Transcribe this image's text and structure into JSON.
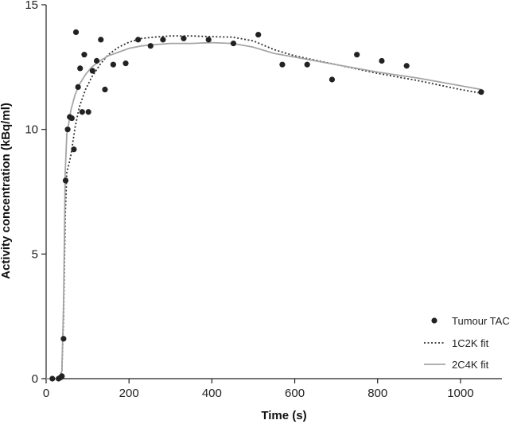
{
  "chart_data": {
    "type": "scatter",
    "title": "",
    "xlabel": "Time (s)",
    "ylabel": "Activity concentration (kBq/ml)",
    "xlim": [
      0,
      1100
    ],
    "ylim": [
      0,
      15
    ],
    "xticks": [
      0,
      200,
      400,
      600,
      800,
      1000
    ],
    "yticks": [
      0,
      5,
      10,
      15
    ],
    "grid": false,
    "legend_position": "bottom-right",
    "series": [
      {
        "name": "Tumour TAC",
        "kind": "scatter",
        "color": "#222222",
        "x": [
          15,
          30,
          35,
          38,
          42,
          47,
          52,
          57,
          62,
          67,
          72,
          77,
          82,
          87,
          92,
          102,
          112,
          122,
          132,
          142,
          162,
          192,
          222,
          252,
          282,
          332,
          392,
          452,
          512,
          570,
          630,
          690,
          750,
          810,
          870,
          1050
        ],
        "y": [
          0.0,
          0.0,
          0.05,
          0.1,
          1.6,
          7.95,
          10.0,
          10.5,
          10.45,
          9.2,
          13.9,
          11.7,
          12.45,
          10.7,
          13.0,
          10.7,
          12.35,
          12.75,
          13.6,
          11.6,
          12.6,
          12.65,
          13.6,
          13.35,
          13.6,
          13.65,
          13.6,
          13.45,
          13.8,
          12.6,
          12.6,
          12.0,
          13.0,
          12.75,
          12.55,
          11.5
        ]
      },
      {
        "name": "1C2K fit",
        "kind": "line",
        "dash": "dotted",
        "color": "#333333",
        "x": [
          0,
          30,
          38,
          42,
          46,
          50,
          55,
          60,
          70,
          80,
          95,
          110,
          130,
          150,
          175,
          200,
          230,
          260,
          300,
          350,
          400,
          450,
          500,
          550,
          600,
          700,
          800,
          900,
          1000,
          1050
        ],
        "y": [
          0.0,
          0.0,
          0.3,
          2.5,
          6.5,
          8.3,
          8.6,
          9.0,
          10.1,
          10.9,
          11.6,
          12.1,
          12.6,
          13.0,
          13.3,
          13.5,
          13.65,
          13.7,
          13.75,
          13.75,
          13.72,
          13.7,
          13.55,
          13.2,
          12.95,
          12.6,
          12.25,
          11.95,
          11.6,
          11.45
        ]
      },
      {
        "name": "2C4K fit",
        "kind": "line",
        "dash": "solid",
        "color": "#a6a6a6",
        "x": [
          0,
          30,
          38,
          42,
          46,
          50,
          55,
          60,
          70,
          80,
          95,
          110,
          130,
          150,
          175,
          200,
          230,
          260,
          300,
          350,
          400,
          450,
          500,
          550,
          600,
          700,
          800,
          900,
          1000,
          1050
        ],
        "y": [
          0.0,
          0.0,
          0.3,
          3.0,
          8.3,
          9.8,
          10.3,
          10.8,
          11.4,
          11.8,
          12.2,
          12.5,
          12.75,
          12.95,
          13.1,
          13.25,
          13.35,
          13.4,
          13.45,
          13.45,
          13.48,
          13.45,
          13.3,
          13.05,
          12.9,
          12.6,
          12.3,
          12.05,
          11.75,
          11.6
        ]
      }
    ]
  }
}
